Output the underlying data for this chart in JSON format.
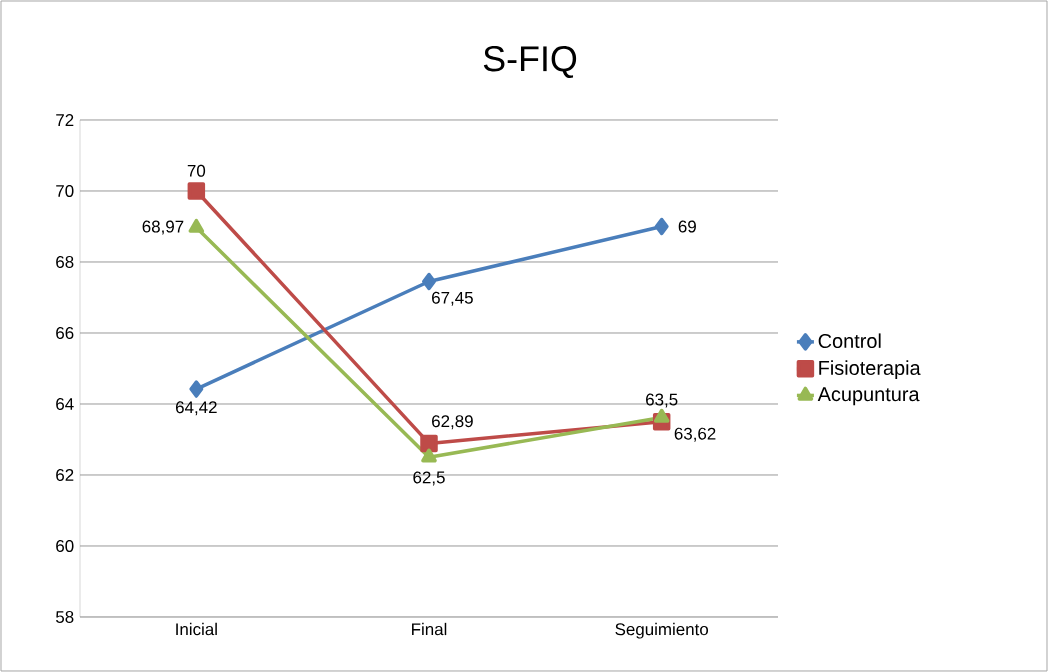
{
  "chart_data": {
    "type": "line",
    "title": "S-FIQ",
    "categories": [
      "Inicial",
      "Final",
      "Seguimiento"
    ],
    "series": [
      {
        "name": "Control",
        "color": "#4a7ebb",
        "marker": "diamond",
        "values": [
          64.42,
          67.45,
          69
        ],
        "value_labels": [
          "64,42",
          "67,45",
          "69"
        ]
      },
      {
        "name": "Fisioterapia",
        "color": "#be4b48",
        "marker": "square",
        "values": [
          70,
          62.89,
          63.5
        ],
        "value_labels": [
          "70",
          "62,89",
          "63,5"
        ]
      },
      {
        "name": "Acupuntura",
        "color": "#98b954",
        "marker": "triangle",
        "values": [
          68.97,
          62.5,
          63.62
        ],
        "value_labels": [
          "68,97",
          "62,5",
          "63,62"
        ]
      }
    ],
    "ylim": [
      58,
      72
    ],
    "yticks": [
      58,
      60,
      62,
      64,
      66,
      68,
      70,
      72
    ],
    "grid": "y",
    "legend": "right",
    "line_style": "solid"
  }
}
